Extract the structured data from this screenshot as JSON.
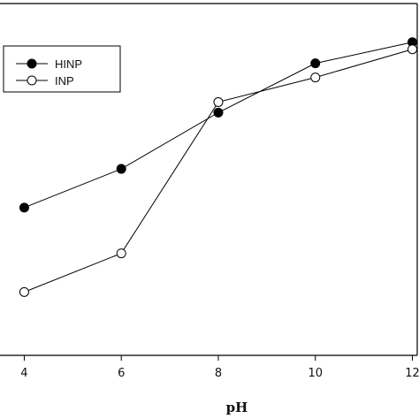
{
  "chart_data": {
    "type": "line",
    "xlabel": "pH",
    "ylabel": "",
    "title": "",
    "xlim": [
      3.5,
      12.1
    ],
    "ylim": [
      0,
      1
    ],
    "x_ticks": [
      4,
      6,
      8,
      10,
      12
    ],
    "x_tick_labels": [
      "4",
      "6",
      "8",
      "10",
      "12"
    ],
    "grid": false,
    "legend": {
      "placement": "top-left"
    },
    "series": [
      {
        "name": "HINP",
        "marker": "filled-circle",
        "color": "#000000",
        "x": [
          4,
          6,
          8,
          10,
          12
        ],
        "y": [
          0.42,
          0.53,
          0.69,
          0.83,
          0.89
        ]
      },
      {
        "name": "INP",
        "marker": "open-circle",
        "color": "#000000",
        "x": [
          4,
          6,
          8,
          10,
          12
        ],
        "y": [
          0.18,
          0.29,
          0.72,
          0.79,
          0.87
        ]
      }
    ]
  }
}
